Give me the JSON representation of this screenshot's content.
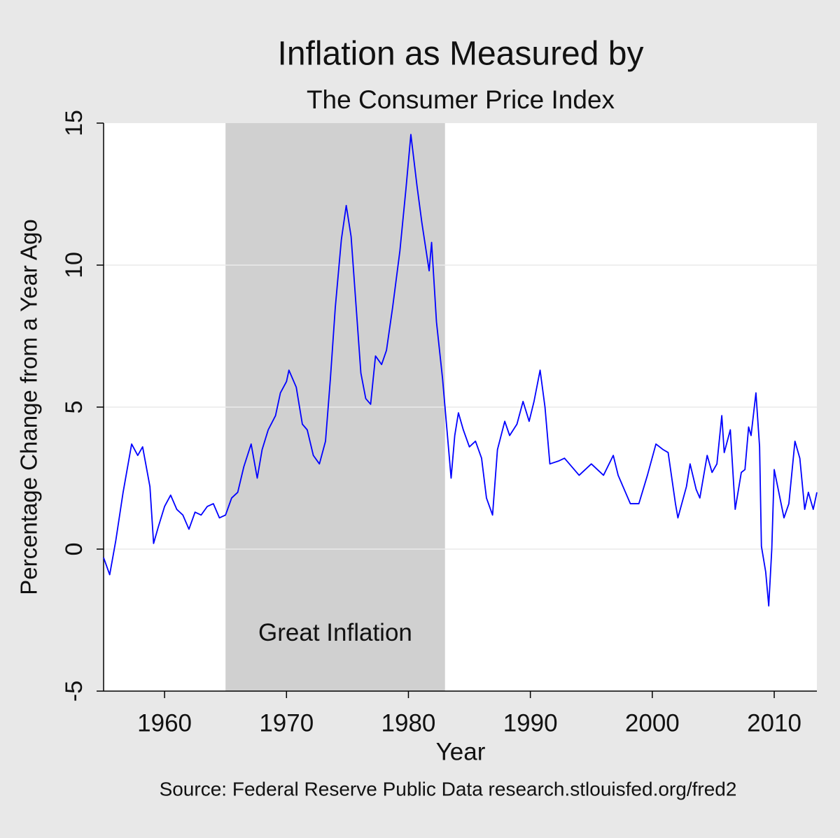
{
  "chart_data": {
    "type": "line",
    "title": "Inflation as Measured by",
    "subtitle": "The Consumer Price Index",
    "x_label": "Year",
    "y_label": "Percentage Change from a Year Ago",
    "source": "Source: Federal Reserve Public Data research.stlouisfed.org/fred2",
    "xlim": [
      1955,
      2013.5
    ],
    "ylim": [
      -5,
      15
    ],
    "xticks": [
      1960,
      1970,
      1980,
      1990,
      2000,
      2010
    ],
    "yticks": [
      -5,
      0,
      5,
      10,
      15
    ],
    "grid": true,
    "shaded_region": {
      "x": [
        1965,
        1983
      ],
      "color": "#d0d0d0"
    },
    "annotation": {
      "text": "Great Inflation",
      "x": 1974,
      "y": -3
    },
    "x": [
      1955.0,
      1955.5,
      1956.0,
      1956.6,
      1957.3,
      1957.8,
      1958.2,
      1958.8,
      1959.1,
      1959.5,
      1960.0,
      1960.5,
      1961.0,
      1961.5,
      1962.0,
      1962.5,
      1963.0,
      1963.5,
      1964.0,
      1964.5,
      1965.0,
      1965.5,
      1966.0,
      1966.5,
      1967.1,
      1967.6,
      1968.0,
      1968.5,
      1969.1,
      1969.5,
      1970.0,
      1970.2,
      1970.8,
      1971.3,
      1971.7,
      1972.2,
      1972.7,
      1973.2,
      1973.6,
      1974.0,
      1974.5,
      1974.9,
      1975.3,
      1975.7,
      1976.1,
      1976.5,
      1976.9,
      1977.3,
      1977.8,
      1978.2,
      1978.7,
      1979.3,
      1979.8,
      1980.2,
      1980.7,
      1981.1,
      1981.7,
      1981.9,
      1982.3,
      1982.8,
      1983.2,
      1983.5,
      1983.8,
      1984.1,
      1984.5,
      1985.0,
      1985.5,
      1986.0,
      1986.4,
      1986.9,
      1987.3,
      1987.9,
      1988.3,
      1988.9,
      1989.4,
      1989.9,
      1990.3,
      1990.8,
      1991.2,
      1991.6,
      1992.3,
      1992.8,
      1994.0,
      1995.0,
      1996.0,
      1996.8,
      1997.2,
      1998.2,
      1998.9,
      1999.6,
      2000.3,
      2000.9,
      2001.3,
      2001.9,
      2002.1,
      2002.8,
      2003.1,
      2003.6,
      2003.9,
      2004.5,
      2004.9,
      2005.3,
      2005.7,
      2005.9,
      2006.4,
      2006.8,
      2007.3,
      2007.6,
      2007.9,
      2008.1,
      2008.5,
      2008.8,
      2008.95,
      2009.3,
      2009.55,
      2009.8,
      2010.0,
      2010.8,
      2011.2,
      2011.7,
      2012.1,
      2012.5,
      2012.8,
      2013.2,
      2013.5
    ],
    "series": [
      {
        "name": "CPI",
        "color": "#0000ff",
        "values": [
          -0.3,
          -0.9,
          0.3,
          2.0,
          3.7,
          3.3,
          3.6,
          2.2,
          0.2,
          0.8,
          1.5,
          1.9,
          1.4,
          1.2,
          0.7,
          1.3,
          1.2,
          1.5,
          1.6,
          1.1,
          1.2,
          1.8,
          2.0,
          2.9,
          3.7,
          2.5,
          3.5,
          4.2,
          4.7,
          5.5,
          5.9,
          6.3,
          5.7,
          4.4,
          4.2,
          3.3,
          3.0,
          3.8,
          6.0,
          8.5,
          10.9,
          12.1,
          11.0,
          8.6,
          6.2,
          5.3,
          5.1,
          6.8,
          6.5,
          7.0,
          8.5,
          10.5,
          12.7,
          14.6,
          12.8,
          11.5,
          9.8,
          10.8,
          8.0,
          6.0,
          4.0,
          2.5,
          4.0,
          4.8,
          4.2,
          3.6,
          3.8,
          3.2,
          1.8,
          1.2,
          3.5,
          4.5,
          4.0,
          4.4,
          5.2,
          4.5,
          5.2,
          6.3,
          5.0,
          3.0,
          3.1,
          3.2,
          2.6,
          3.0,
          2.6,
          3.3,
          2.6,
          1.6,
          1.6,
          2.6,
          3.7,
          3.5,
          3.4,
          1.6,
          1.1,
          2.2,
          3.0,
          2.1,
          1.8,
          3.3,
          2.7,
          3.0,
          4.7,
          3.4,
          4.2,
          1.4,
          2.7,
          2.8,
          4.3,
          4.0,
          5.5,
          3.6,
          0.1,
          -0.8,
          -2.0,
          0.0,
          2.8,
          1.1,
          1.6,
          3.8,
          3.2,
          1.4,
          2.0,
          1.4,
          2.0
        ]
      }
    ]
  }
}
